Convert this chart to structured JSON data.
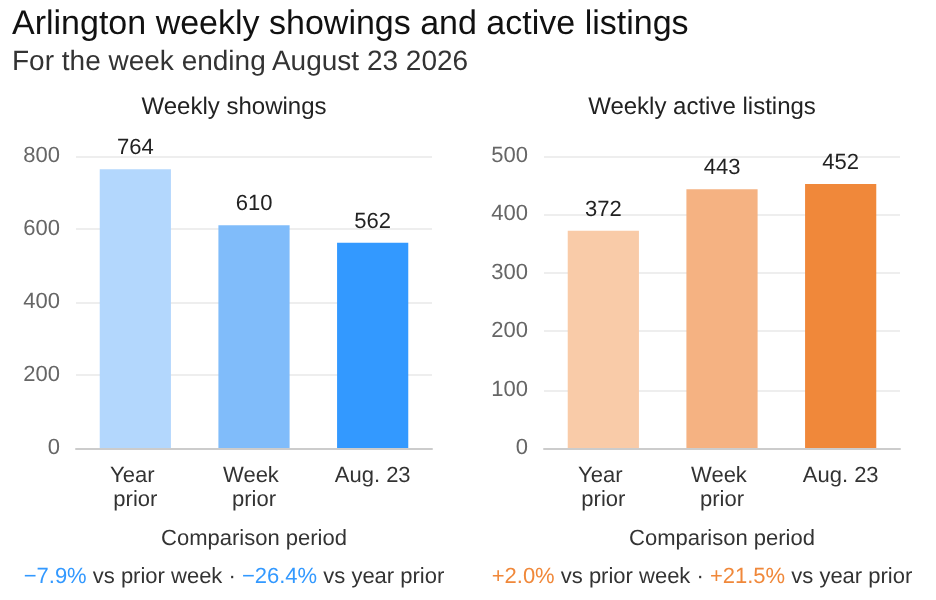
{
  "chart_data": [
    {
      "type": "other",
      "title": "Arlington weekly showings and active listings",
      "subtitle": "For the week ending August 23 2026"
    },
    {
      "type": "bar",
      "title": "Weekly showings",
      "categories": [
        "Year prior",
        "Week prior",
        "Aug. 23"
      ],
      "values": [
        764,
        610,
        562
      ],
      "colors": [
        "#b3d7fd",
        "#80bcfa",
        "#3399ff"
      ],
      "ylim": [
        0,
        800
      ],
      "yticks": [
        0,
        200,
        400,
        600,
        800
      ],
      "grid": "y",
      "data_labels": true,
      "xlabel": "Comparison period",
      "annotations": [
        "−7.9% vs prior week · −26.4% vs year prior"
      ]
    },
    {
      "type": "bar",
      "title": "Weekly active listings",
      "categories": [
        "Year prior",
        "Week prior",
        "Aug. 23"
      ],
      "values": [
        372,
        443,
        452
      ],
      "colors": [
        "#f9cba8",
        "#f5b282",
        "#f0883a"
      ],
      "ylim": [
        0,
        500
      ],
      "yticks": [
        0,
        100,
        200,
        300,
        400,
        500
      ],
      "grid": "y",
      "data_labels": true,
      "xlabel": "Comparison period",
      "annotations": [
        "+2.0% vs prior week · +21.5% vs year prior"
      ]
    }
  ]
}
